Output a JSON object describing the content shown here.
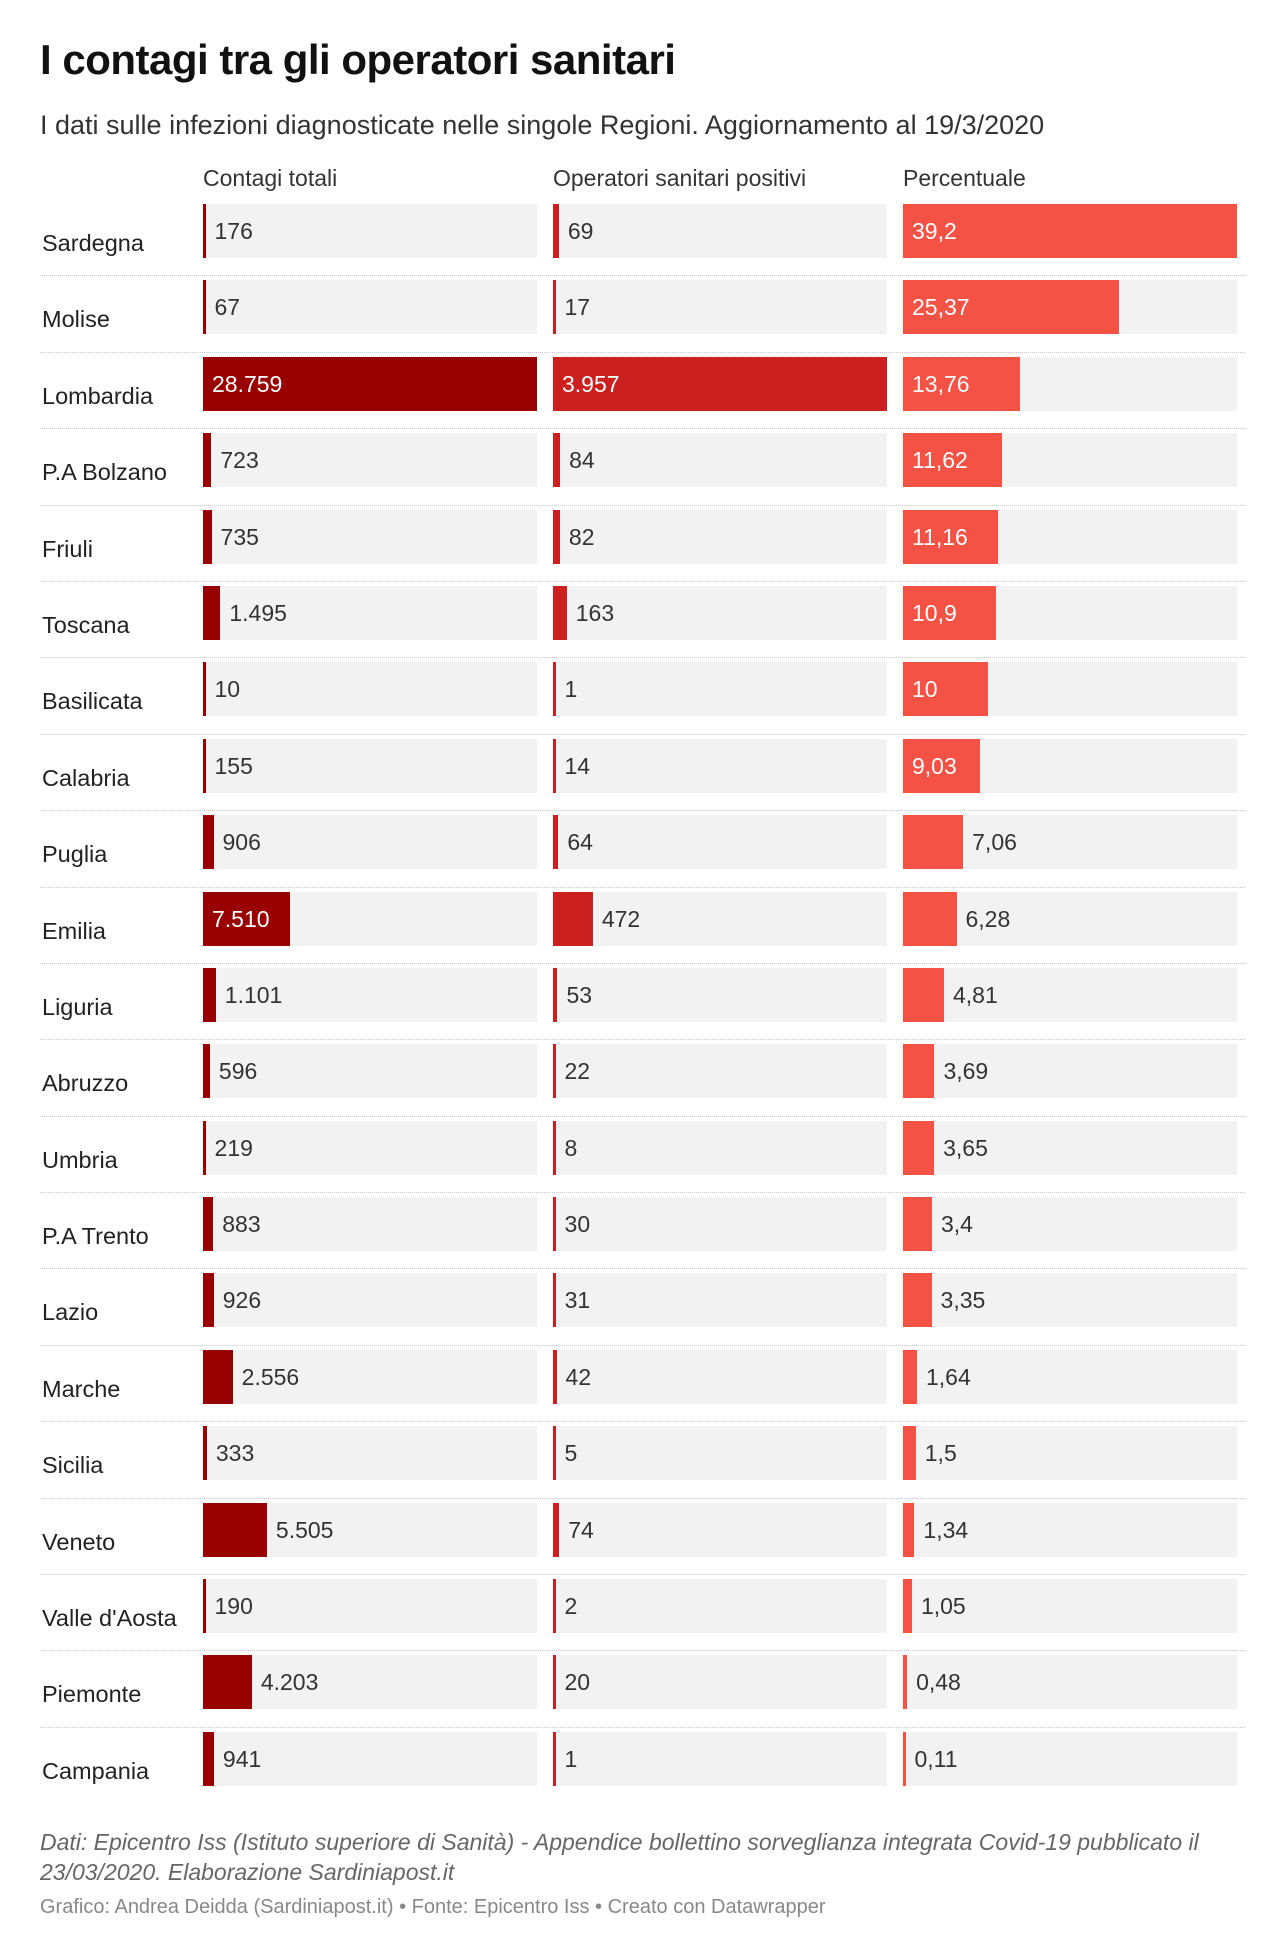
{
  "header": {
    "title": "I contagi tra gli operatori sanitari",
    "subtitle": "I dati sulle infezioni diagnosticate nelle singole Regioni. Aggiornamento al 19/3/2020"
  },
  "chart_data": {
    "type": "bar",
    "layout": "table of three bar columns",
    "columns": [
      "Contagi totali",
      "Operatori sanitari positivi",
      "Percentuale"
    ],
    "colors": {
      "contagi": "#990000",
      "operatori": "#cc1f1f",
      "percentuale": "#f45245",
      "cell_background": "#f2f2f2"
    },
    "max": {
      "contagi": 28759,
      "operatori": 3957,
      "percentuale": 39.2
    },
    "rows": [
      {
        "region": "Sardegna",
        "contagi": 176,
        "contagi_label": "176",
        "operatori": 69,
        "operatori_label": "69",
        "percentuale": 39.2,
        "percentuale_label": "39,2"
      },
      {
        "region": "Molise",
        "contagi": 67,
        "contagi_label": "67",
        "operatori": 17,
        "operatori_label": "17",
        "percentuale": 25.37,
        "percentuale_label": "25,37"
      },
      {
        "region": "Lombardia",
        "contagi": 28759,
        "contagi_label": "28.759",
        "operatori": 3957,
        "operatori_label": "3.957",
        "percentuale": 13.76,
        "percentuale_label": "13,76"
      },
      {
        "region": "P.A Bolzano",
        "contagi": 723,
        "contagi_label": "723",
        "operatori": 84,
        "operatori_label": "84",
        "percentuale": 11.62,
        "percentuale_label": "11,62"
      },
      {
        "region": "Friuli",
        "contagi": 735,
        "contagi_label": "735",
        "operatori": 82,
        "operatori_label": "82",
        "percentuale": 11.16,
        "percentuale_label": "11,16"
      },
      {
        "region": "Toscana",
        "contagi": 1495,
        "contagi_label": "1.495",
        "operatori": 163,
        "operatori_label": "163",
        "percentuale": 10.9,
        "percentuale_label": "10,9"
      },
      {
        "region": "Basilicata",
        "contagi": 10,
        "contagi_label": "10",
        "operatori": 1,
        "operatori_label": "1",
        "percentuale": 10,
        "percentuale_label": "10"
      },
      {
        "region": "Calabria",
        "contagi": 155,
        "contagi_label": "155",
        "operatori": 14,
        "operatori_label": "14",
        "percentuale": 9.03,
        "percentuale_label": "9,03"
      },
      {
        "region": "Puglia",
        "contagi": 906,
        "contagi_label": "906",
        "operatori": 64,
        "operatori_label": "64",
        "percentuale": 7.06,
        "percentuale_label": "7,06"
      },
      {
        "region": "Emilia",
        "contagi": 7510,
        "contagi_label": "7.510",
        "operatori": 472,
        "operatori_label": "472",
        "percentuale": 6.28,
        "percentuale_label": "6,28"
      },
      {
        "region": "Liguria",
        "contagi": 1101,
        "contagi_label": "1.101",
        "operatori": 53,
        "operatori_label": "53",
        "percentuale": 4.81,
        "percentuale_label": "4,81"
      },
      {
        "region": "Abruzzo",
        "contagi": 596,
        "contagi_label": "596",
        "operatori": 22,
        "operatori_label": "22",
        "percentuale": 3.69,
        "percentuale_label": "3,69"
      },
      {
        "region": "Umbria",
        "contagi": 219,
        "contagi_label": "219",
        "operatori": 8,
        "operatori_label": "8",
        "percentuale": 3.65,
        "percentuale_label": "3,65"
      },
      {
        "region": "P.A Trento",
        "contagi": 883,
        "contagi_label": "883",
        "operatori": 30,
        "operatori_label": "30",
        "percentuale": 3.4,
        "percentuale_label": "3,4"
      },
      {
        "region": "Lazio",
        "contagi": 926,
        "contagi_label": "926",
        "operatori": 31,
        "operatori_label": "31",
        "percentuale": 3.35,
        "percentuale_label": "3,35"
      },
      {
        "region": "Marche",
        "contagi": 2556,
        "contagi_label": "2.556",
        "operatori": 42,
        "operatori_label": "42",
        "percentuale": 1.64,
        "percentuale_label": "1,64"
      },
      {
        "region": "Sicilia",
        "contagi": 333,
        "contagi_label": "333",
        "operatori": 5,
        "operatori_label": "5",
        "percentuale": 1.5,
        "percentuale_label": "1,5"
      },
      {
        "region": "Veneto",
        "contagi": 5505,
        "contagi_label": "5.505",
        "operatori": 74,
        "operatori_label": "74",
        "percentuale": 1.34,
        "percentuale_label": "1,34"
      },
      {
        "region": "Valle d'Aosta",
        "contagi": 190,
        "contagi_label": "190",
        "operatori": 2,
        "operatori_label": "2",
        "percentuale": 1.05,
        "percentuale_label": "1,05"
      },
      {
        "region": "Piemonte",
        "contagi": 4203,
        "contagi_label": "4.203",
        "operatori": 20,
        "operatori_label": "20",
        "percentuale": 0.48,
        "percentuale_label": "0,48"
      },
      {
        "region": "Campania",
        "contagi": 941,
        "contagi_label": "941",
        "operatori": 1,
        "operatori_label": "1",
        "percentuale": 0.11,
        "percentuale_label": "0,11"
      }
    ]
  },
  "footer": {
    "notes": "Dati: Epicentro Iss (Istituto superiore di Sanità) - Appendice bollettino sorveglianza integrata Covid-19 pubblicato il 23/03/2020. Elaborazione Sardiniapost.it",
    "credit": "Grafico: Andrea Deidda (Sardiniapost.it) • Fonte: Epicentro Iss • Creato con Datawrapper"
  }
}
